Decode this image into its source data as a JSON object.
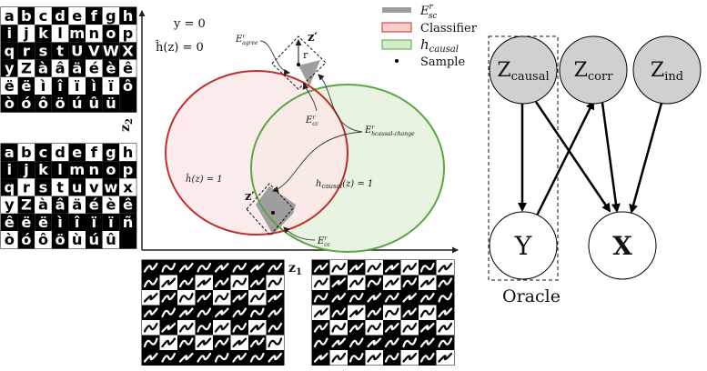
{
  "grids": {
    "top_left": {
      "rows": [
        [
          "a",
          "b",
          "c",
          "d",
          "e",
          "f",
          "g",
          "h"
        ],
        [
          "i",
          "j",
          "k",
          "l",
          "m",
          "n",
          "o",
          "p"
        ],
        [
          "q",
          "r",
          "s",
          "t",
          "U",
          "V",
          "W",
          "X"
        ],
        [
          "y",
          "Z",
          "à",
          "â",
          "ä",
          "é",
          "è",
          "ê"
        ],
        [
          "ë",
          "ë",
          "ì",
          "î",
          "ï",
          "ì",
          "ï",
          "ô"
        ],
        [
          "ò",
          "ó",
          "ô",
          "ö",
          "ú",
          "û",
          "ü",
          ""
        ]
      ]
    },
    "mid_left": {
      "rows": [
        [
          "a",
          "b",
          "c",
          "d",
          "e",
          "f",
          "g",
          "h"
        ],
        [
          "i",
          "j",
          "k",
          "l",
          "m",
          "n",
          "o",
          "p"
        ],
        [
          "q",
          "r",
          "s",
          "t",
          "u",
          "v",
          "w",
          "x"
        ],
        [
          "y",
          "Z",
          "à",
          "â",
          "ä",
          "é",
          "è",
          "ê"
        ],
        [
          "ê",
          "ë",
          "ë",
          "ì",
          "î",
          "ï",
          "ï",
          "ñ"
        ],
        [
          "ò",
          "ó",
          "ô",
          "ö",
          "ù",
          "ú",
          "û",
          ""
        ]
      ]
    },
    "bottom1": {
      "rows": 7,
      "cols": 8
    },
    "bottom2": {
      "rows": 7,
      "cols": 8
    }
  },
  "axes": {
    "y_label": "z",
    "y_sub": "2",
    "x_label": "z",
    "x_sub": "1"
  },
  "legend": {
    "items": [
      {
        "label": "E",
        "sup": "r",
        "sub": "sc",
        "color": "#9e9e9e",
        "kind": "bar"
      },
      {
        "label": "Classifier",
        "color": "#f6cfcd",
        "border": "#c0302b",
        "kind": "box"
      },
      {
        "label": "h",
        "sub": "causal",
        "color": "#d3ebc8",
        "border": "#5aa544",
        "kind": "box"
      },
      {
        "label": "Sample",
        "kind": "dot"
      }
    ]
  },
  "venn": {
    "y_eq": "y = 0",
    "h_eq": "ĥ(z) = 0",
    "classifier_region": "ĥ(z) = 1",
    "causal_region": "h",
    "causal_region_sub": "causal",
    "causal_region_tail": "(z) = 1",
    "z_prime": "z′",
    "r": "r",
    "E_agree": "E",
    "E_agree_sub": "agree",
    "E_cc": "E",
    "E_cc_sub": "cc",
    "E_hchange": "E",
    "E_hchange_sub": "hcausal-change",
    "sup_r": "r",
    "colors": {
      "classifier_fill": "#fbe9e8",
      "classifier_edge": "#c0302b",
      "causal_fill": "#e9f3e1",
      "causal_edge": "#5aa544",
      "shade": "#9e9e9e"
    }
  },
  "graph": {
    "nodes": [
      {
        "id": "zc",
        "label": "Z",
        "sub": "causal",
        "shaded": true
      },
      {
        "id": "zr",
        "label": "Z",
        "sub": "corr",
        "shaded": true
      },
      {
        "id": "zi",
        "label": "Z",
        "sub": "ind",
        "shaded": true
      },
      {
        "id": "y",
        "label": "Y",
        "shaded": false
      },
      {
        "id": "x",
        "label": "X",
        "shaded": false
      }
    ],
    "oracle_label": "Oracle",
    "colors": {
      "shaded": "#d0d0d0",
      "plain": "#ffffff"
    }
  }
}
